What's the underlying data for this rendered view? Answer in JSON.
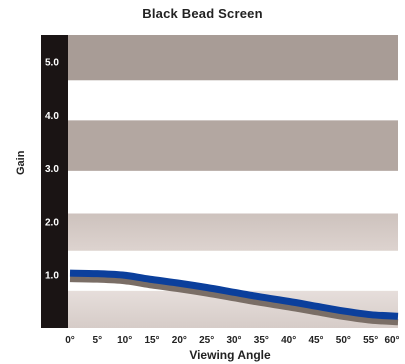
{
  "chart_data": {
    "type": "line",
    "title": "Black Bead Screen",
    "xlabel": "Viewing Angle",
    "ylabel": "Gain",
    "x_ticks": [
      "0°",
      "5°",
      "10°",
      "15°",
      "20°",
      "25°",
      "30°",
      "35°",
      "40°",
      "45°",
      "50°",
      "55°",
      "60°"
    ],
    "y_ticks": [
      "1.0",
      "2.0",
      "3.0",
      "4.0",
      "5.0"
    ],
    "xlim": [
      0,
      60
    ],
    "ylim": [
      0,
      5.5
    ],
    "series": [
      {
        "x": [
          0,
          5,
          10,
          15,
          20,
          25,
          30,
          35,
          40,
          45,
          50,
          55,
          60
        ],
        "values": [
          1.03,
          1.02,
          0.99,
          0.91,
          0.84,
          0.76,
          0.67,
          0.58,
          0.5,
          0.41,
          0.32,
          0.25,
          0.22
        ],
        "color": "#0b3f9c"
      }
    ],
    "band_colors": [
      "#d8ccc8",
      "#a89c96"
    ],
    "axis_color": "#1a1414",
    "line_shadow_color": "#7a6e66"
  }
}
